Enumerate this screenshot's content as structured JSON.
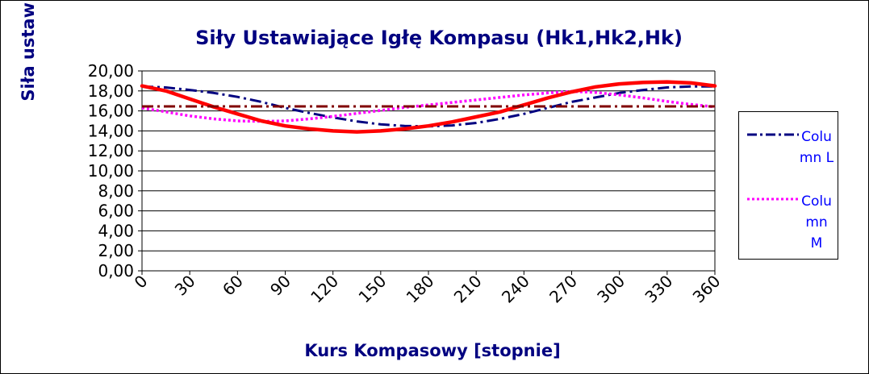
{
  "chart_data": {
    "type": "line",
    "title": "Siły Ustawiające Igłę Kompasu (Hk1,Hk2,Hk)",
    "xlabel": "Kurs Kompasowy  [stopnie]",
    "ylabel": "Siła ustaw",
    "xlim": [
      0,
      360
    ],
    "ylim": [
      0,
      20
    ],
    "x_ticks": [
      "0",
      "30",
      "60",
      "90",
      "120",
      "150",
      "180",
      "210",
      "240",
      "270",
      "300",
      "330",
      "360"
    ],
    "y_ticks": [
      "0,00",
      "2,00",
      "4,00",
      "6,00",
      "8,00",
      "10,00",
      "12,00",
      "14,00",
      "16,00",
      "18,00",
      "20,00"
    ],
    "grid": true,
    "legend_position": "right",
    "x": [
      0,
      15,
      30,
      45,
      60,
      75,
      90,
      105,
      120,
      135,
      150,
      165,
      180,
      195,
      210,
      225,
      240,
      255,
      270,
      285,
      300,
      315,
      330,
      345,
      360
    ],
    "series": [
      {
        "name": "Column L",
        "color": "#000080",
        "dash": "dash-dot",
        "values": [
          18.45,
          18.35,
          18.1,
          17.8,
          17.4,
          16.9,
          16.3,
          15.8,
          15.35,
          14.95,
          14.65,
          14.5,
          14.45,
          14.55,
          14.8,
          15.2,
          15.7,
          16.3,
          16.9,
          17.35,
          17.8,
          18.1,
          18.35,
          18.45,
          18.45
        ]
      },
      {
        "name": "Column M",
        "color": "#ff00ff",
        "dash": "dotted",
        "values": [
          16.3,
          15.9,
          15.5,
          15.2,
          15.0,
          14.95,
          15.0,
          15.2,
          15.45,
          15.75,
          16.05,
          16.35,
          16.6,
          16.85,
          17.1,
          17.35,
          17.6,
          17.8,
          17.95,
          17.85,
          17.6,
          17.3,
          16.95,
          16.65,
          16.4
        ]
      },
      {
        "name": "",
        "color": "#ff0000",
        "dash": "solid",
        "values": [
          18.5,
          18.0,
          17.2,
          16.4,
          15.7,
          15.0,
          14.5,
          14.2,
          14.0,
          13.9,
          14.0,
          14.2,
          14.5,
          14.9,
          15.4,
          15.9,
          16.6,
          17.3,
          17.9,
          18.4,
          18.7,
          18.85,
          18.9,
          18.8,
          18.5
        ]
      },
      {
        "name": "",
        "color": "#800000",
        "dash": "dash-dot",
        "values": [
          16.45,
          16.45,
          16.45,
          16.45,
          16.45,
          16.45,
          16.45,
          16.45,
          16.45,
          16.45,
          16.45,
          16.45,
          16.45,
          16.45,
          16.45,
          16.45,
          16.45,
          16.45,
          16.45,
          16.45,
          16.45,
          16.45,
          16.45,
          16.45,
          16.45
        ]
      }
    ],
    "legend": [
      {
        "label": "Column L",
        "color": "#000080",
        "dash": "dash-dot"
      },
      {
        "label": "Column M",
        "color": "#ff00ff",
        "dash": "dotted"
      }
    ]
  }
}
